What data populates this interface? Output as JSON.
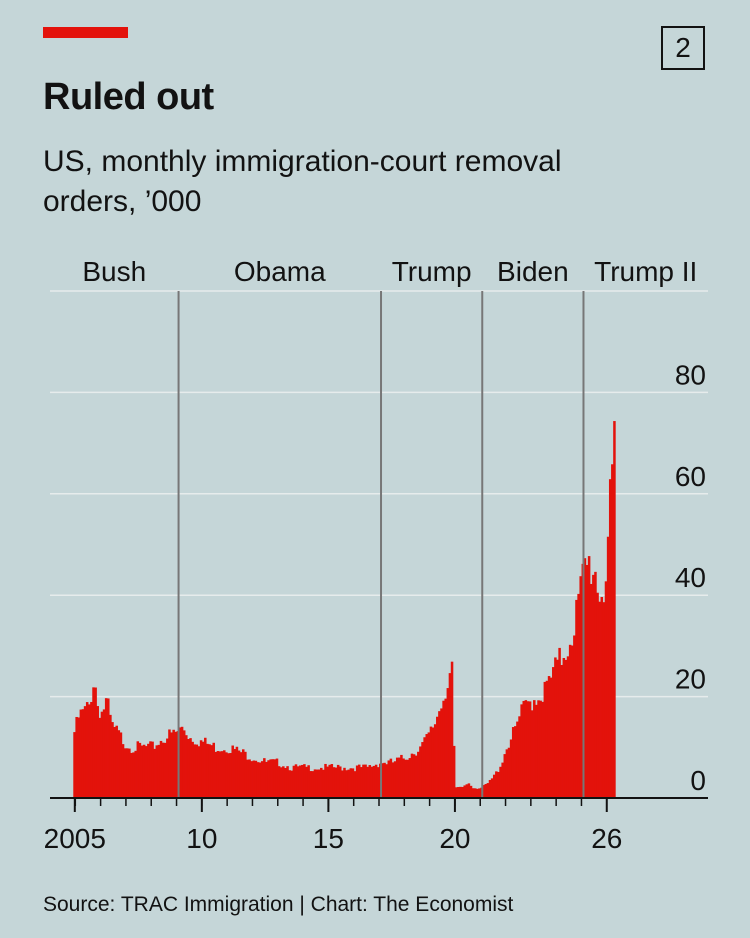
{
  "header": {
    "badge": "2",
    "title": "Ruled out",
    "subtitle": "US, monthly immigration-court removal orders, ’000"
  },
  "footer": {
    "source": "Source: TRAC Immigration | Chart: The Economist"
  },
  "colors": {
    "background": "#c5d6d8",
    "accent": "#e3120b",
    "bar_fill": "#e3120b",
    "gridline": "#e6ecec",
    "divider": "#777777"
  },
  "chart_data": {
    "type": "bar",
    "title": "Ruled out",
    "subtitle": "US, monthly immigration-court removal orders, ’000",
    "x_ticks": [
      {
        "year": 2004.98,
        "label": "2005"
      },
      {
        "year": 2010,
        "label": "10"
      },
      {
        "year": 2015,
        "label": "15"
      },
      {
        "year": 2020,
        "label": "20"
      },
      {
        "year": 2026,
        "label": "26"
      }
    ],
    "y_ticks": [
      0,
      20,
      40,
      60,
      80
    ],
    "ylim": [
      0,
      100
    ],
    "xlim": [
      2004.0,
      2030.0
    ],
    "grid": true,
    "administrations": [
      {
        "name": "Bush",
        "start": 2004.0,
        "end": 2009.08
      },
      {
        "name": "Obama",
        "start": 2009.08,
        "end": 2017.08
      },
      {
        "name": "Trump",
        "start": 2017.08,
        "end": 2021.08
      },
      {
        "name": "Biden",
        "start": 2021.08,
        "end": 2025.08
      },
      {
        "name": "Trump II",
        "start": 2025.08,
        "end": 2030.0
      }
    ],
    "series": [
      {
        "anchors": [
          [
            2004.92,
            13
          ],
          [
            2005.1,
            16
          ],
          [
            2005.3,
            17
          ],
          [
            2005.5,
            18
          ],
          [
            2005.7,
            24
          ],
          [
            2005.85,
            18
          ],
          [
            2006.0,
            17
          ],
          [
            2006.2,
            19
          ],
          [
            2006.4,
            14
          ],
          [
            2006.6,
            13
          ],
          [
            2006.9,
            11
          ],
          [
            2007.2,
            10
          ],
          [
            2007.6,
            10
          ],
          [
            2008.0,
            10
          ],
          [
            2008.5,
            12
          ],
          [
            2009.0,
            13
          ],
          [
            2009.2,
            14
          ],
          [
            2009.5,
            12
          ],
          [
            2010.0,
            11
          ],
          [
            2010.5,
            10
          ],
          [
            2011.0,
            10
          ],
          [
            2011.5,
            9
          ],
          [
            2012.0,
            8
          ],
          [
            2012.5,
            7
          ],
          [
            2013.0,
            7
          ],
          [
            2013.5,
            6
          ],
          [
            2014.0,
            6
          ],
          [
            2014.5,
            6
          ],
          [
            2015.0,
            6
          ],
          [
            2015.5,
            6
          ],
          [
            2016.0,
            6
          ],
          [
            2016.5,
            6
          ],
          [
            2017.0,
            7
          ],
          [
            2017.5,
            7
          ],
          [
            2018.0,
            8
          ],
          [
            2018.3,
            9
          ],
          [
            2018.6,
            10
          ],
          [
            2018.9,
            12
          ],
          [
            2019.1,
            14
          ],
          [
            2019.3,
            17
          ],
          [
            2019.5,
            20
          ],
          [
            2019.7,
            24
          ],
          [
            2019.85,
            26
          ],
          [
            2019.95,
            2
          ],
          [
            2020.2,
            2
          ],
          [
            2020.5,
            3
          ],
          [
            2020.7,
            2
          ],
          [
            2021.0,
            2
          ],
          [
            2021.3,
            3
          ],
          [
            2021.6,
            5
          ],
          [
            2021.8,
            7
          ],
          [
            2022.0,
            10
          ],
          [
            2022.3,
            13
          ],
          [
            2022.6,
            17
          ],
          [
            2022.9,
            19
          ],
          [
            2023.2,
            20
          ],
          [
            2023.5,
            21
          ],
          [
            2023.8,
            24
          ],
          [
            2024.1,
            27
          ],
          [
            2024.4,
            30
          ],
          [
            2024.7,
            35
          ],
          [
            2024.9,
            40
          ],
          [
            2025.1,
            45
          ],
          [
            2025.3,
            46
          ],
          [
            2025.5,
            45
          ],
          [
            2025.7,
            40
          ],
          [
            2025.9,
            43
          ],
          [
            2026.05,
            55
          ],
          [
            2026.2,
            60
          ],
          [
            2026.33,
            78
          ]
        ]
      }
    ]
  }
}
